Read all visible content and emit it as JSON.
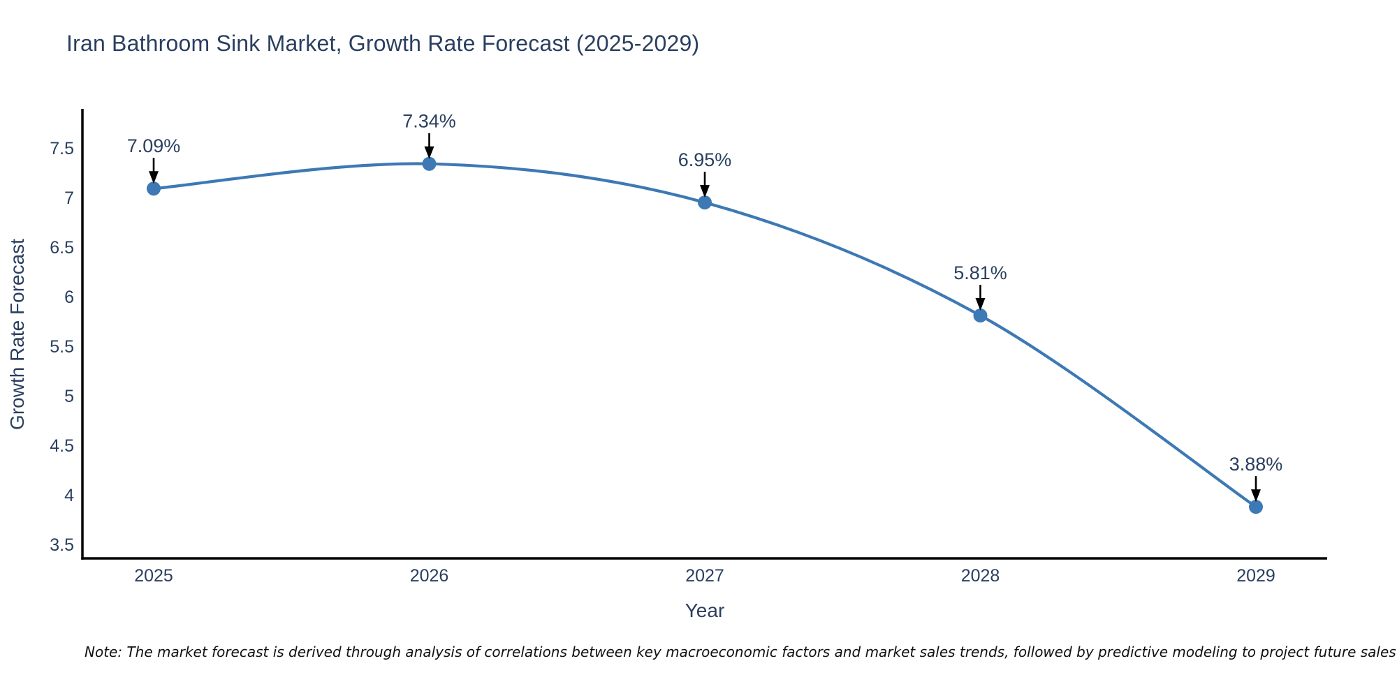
{
  "chart": {
    "title": "Iran Bathroom Sink Market, Growth Rate Forecast (2025-2029)"
  },
  "chart_data": {
    "type": "line",
    "line_shape": "spline",
    "x": [
      2025,
      2026,
      2027,
      2028,
      2029
    ],
    "y": [
      7.09,
      7.34,
      6.95,
      5.81,
      3.88
    ],
    "point_labels": [
      "7.09%",
      "7.34%",
      "6.95%",
      "5.81%",
      "3.88%"
    ],
    "title": "Iran Bathroom Sink Market, Growth Rate Forecast (2025-2029)",
    "xlabel": "Year",
    "ylabel": "Growth Rate Forecast",
    "ylim": [
      3.36,
      7.88
    ],
    "yticks": [
      3.5,
      4,
      4.5,
      5,
      5.5,
      6,
      6.5,
      7,
      7.5
    ],
    "xticks": [
      "2025",
      "2026",
      "2027",
      "2028",
      "2029"
    ],
    "grid": false,
    "legend_position": "none",
    "colors": {
      "line": "#3d79b4",
      "marker": "#3d79b4",
      "axis": "#000000",
      "tick_label": "#2a3f5f",
      "axis_title": "#2a3f5f",
      "annotation_text": "#2a3f5f",
      "annotation_arrow": "#000000",
      "title": "#2a3f5f",
      "background": "#ffffff"
    }
  },
  "note": "Note: The market forecast is derived through analysis of correlations between key macroeconomic factors and market sales trends, followed by predictive modeling to project future sales"
}
